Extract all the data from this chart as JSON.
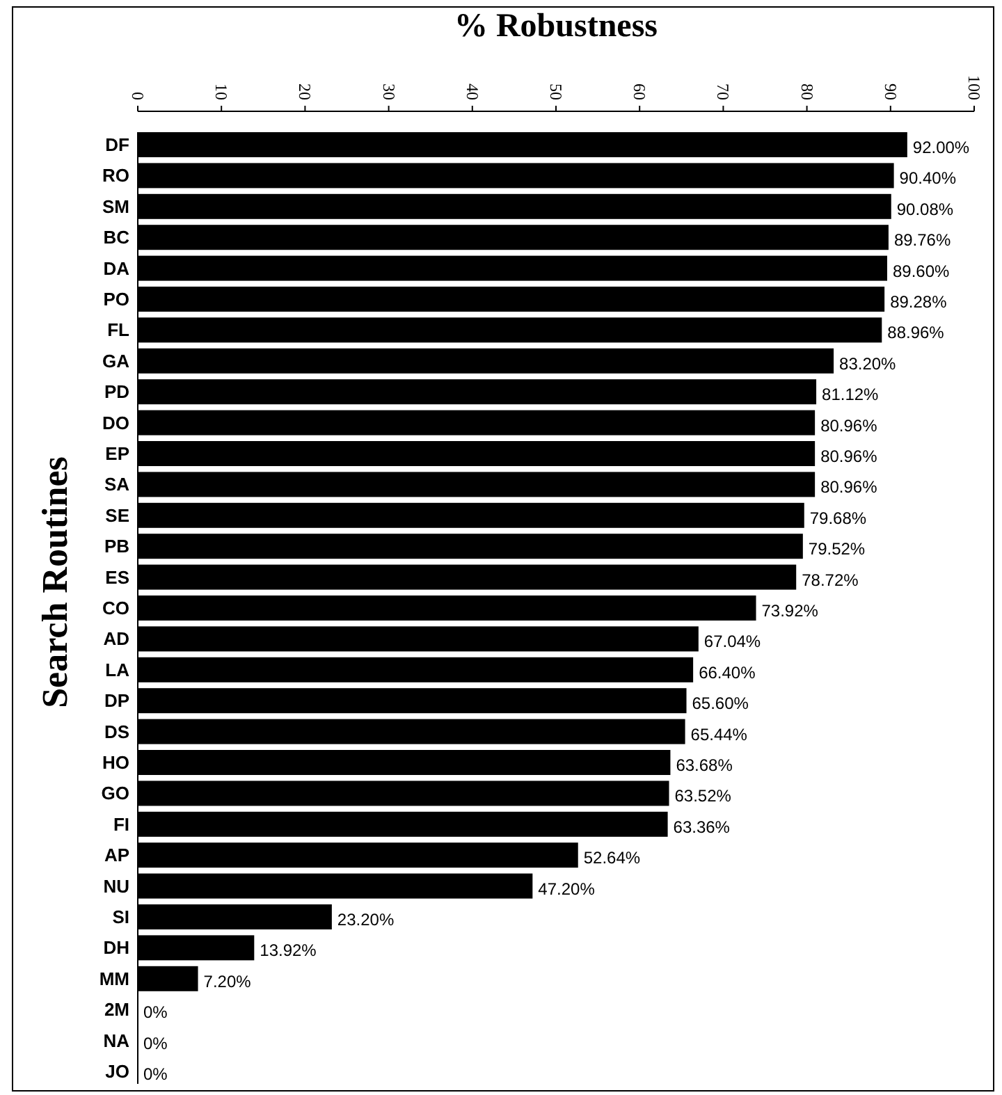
{
  "chart_data": {
    "type": "bar",
    "orientation": "horizontal",
    "title": "% Robustness",
    "ylabel": "Search Routines",
    "categories": [
      "DF",
      "RO",
      "SM",
      "BC",
      "DA",
      "PO",
      "FL",
      "GA",
      "PD",
      "DO",
      "EP",
      "SA",
      "SE",
      "PB",
      "ES",
      "CO",
      "AD",
      "LA",
      "DP",
      "DS",
      "HO",
      "GO",
      "FI",
      "AP",
      "NU",
      "SI",
      "DH",
      "MM",
      "2M",
      "NA",
      "JO"
    ],
    "values": [
      92.0,
      90.4,
      90.08,
      89.76,
      89.6,
      89.28,
      88.96,
      83.2,
      81.12,
      80.96,
      80.96,
      80.96,
      79.68,
      79.52,
      78.72,
      73.92,
      67.04,
      66.4,
      65.6,
      65.44,
      63.68,
      63.52,
      63.36,
      52.64,
      47.2,
      23.2,
      13.92,
      7.2,
      0,
      0,
      0
    ],
    "value_labels": [
      "92.00%",
      "90.40%",
      "90.08%",
      "89.76%",
      "89.60%",
      "89.28%",
      "88.96%",
      "83.20%",
      "81.12%",
      "80.96%",
      "80.96%",
      "80.96%",
      "79.68%",
      "79.52%",
      "78.72%",
      "73.92%",
      "67.04%",
      "66.40%",
      "65.60%",
      "65.44%",
      "63.68%",
      "63.52%",
      "63.36%",
      "52.64%",
      "47.20%",
      "23.20%",
      "13.92%",
      "7.20%",
      "0%",
      "0%",
      "0%"
    ],
    "color": "#000000",
    "xlim": [
      0,
      100
    ],
    "xticks": [
      0,
      10,
      20,
      30,
      40,
      50,
      60,
      70,
      80,
      90,
      100
    ]
  }
}
